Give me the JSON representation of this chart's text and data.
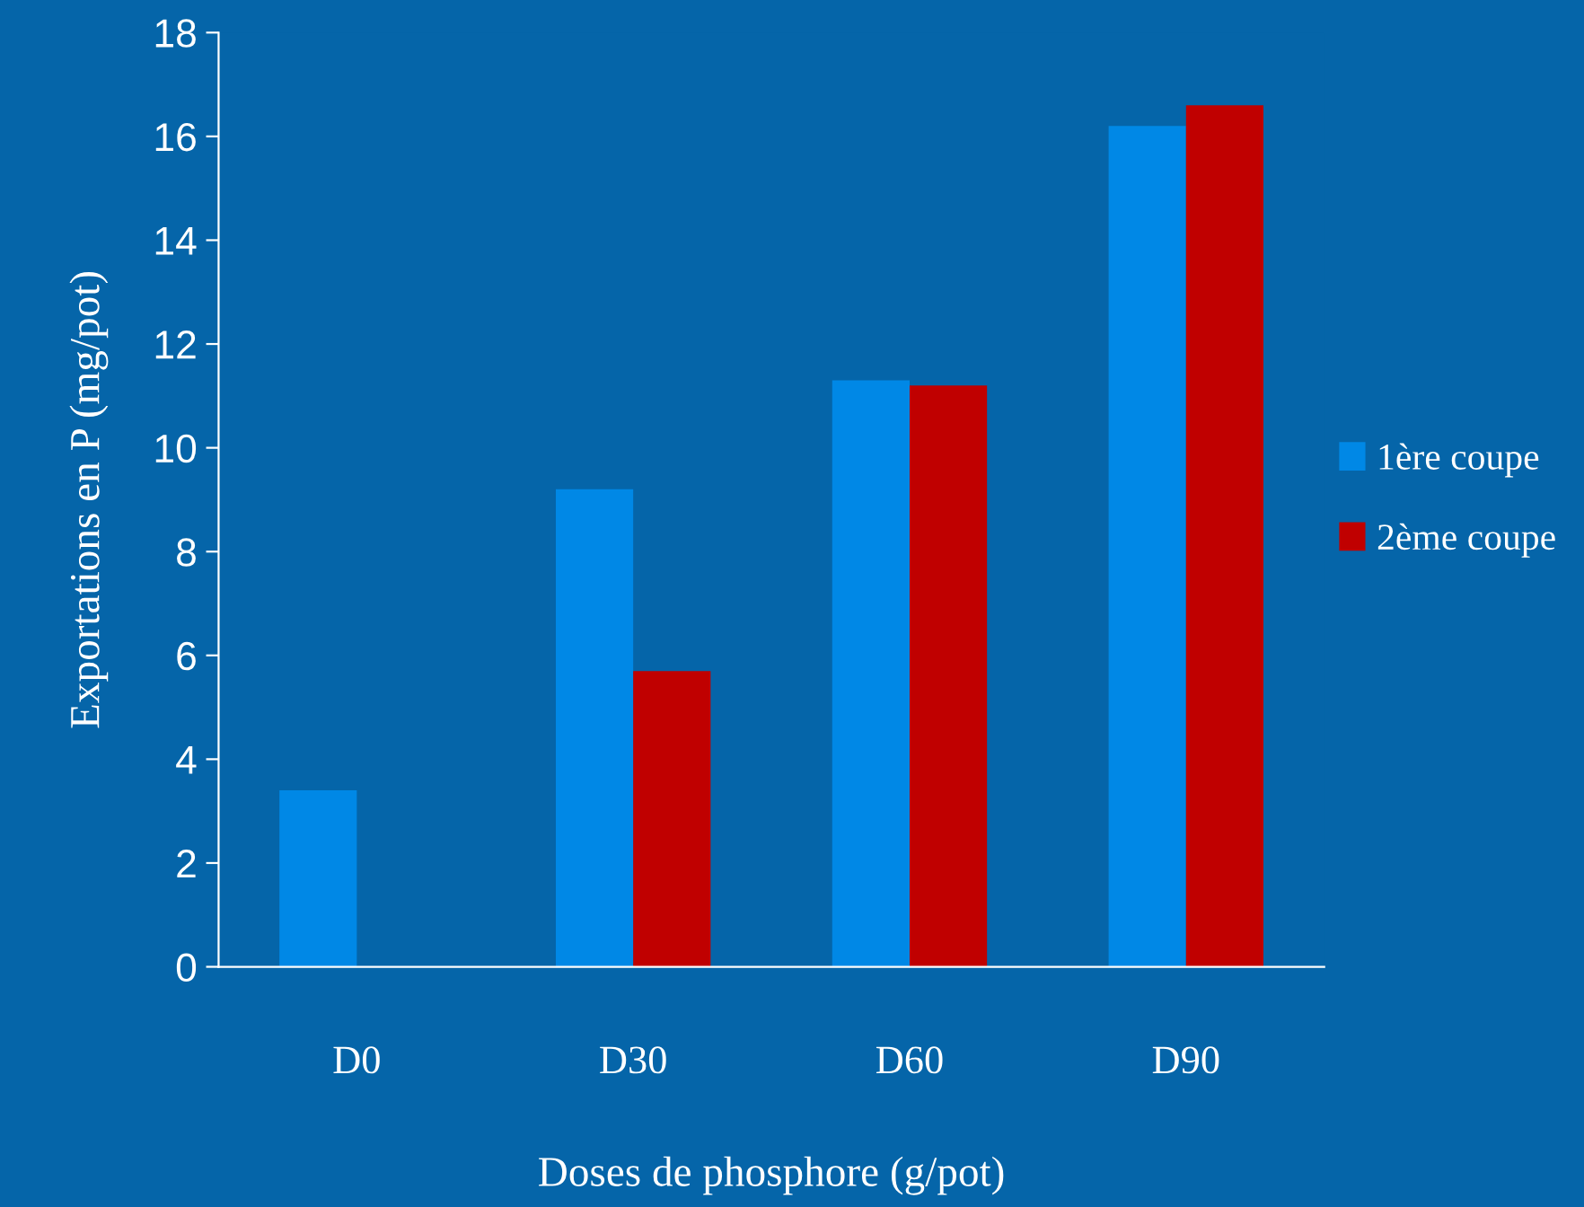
{
  "chart_data": {
    "type": "bar",
    "xlabel": "Doses de phosphore (g/pot)",
    "ylabel": "Exportations en P (mg/pot)",
    "categories": [
      "D0",
      "D30",
      "D60",
      "D90"
    ],
    "series": [
      {
        "name": "1ère coupe",
        "color": "#0088e6",
        "values": [
          3.4,
          9.2,
          11.3,
          16.2
        ]
      },
      {
        "name": "2ème coupe",
        "color": "#c00000",
        "values": [
          null,
          5.7,
          11.2,
          16.6
        ]
      }
    ],
    "ylim": [
      0,
      18
    ],
    "yticks": [
      0,
      2,
      4,
      6,
      8,
      10,
      12,
      14,
      16,
      18
    ],
    "grid": false,
    "legend": "right"
  }
}
